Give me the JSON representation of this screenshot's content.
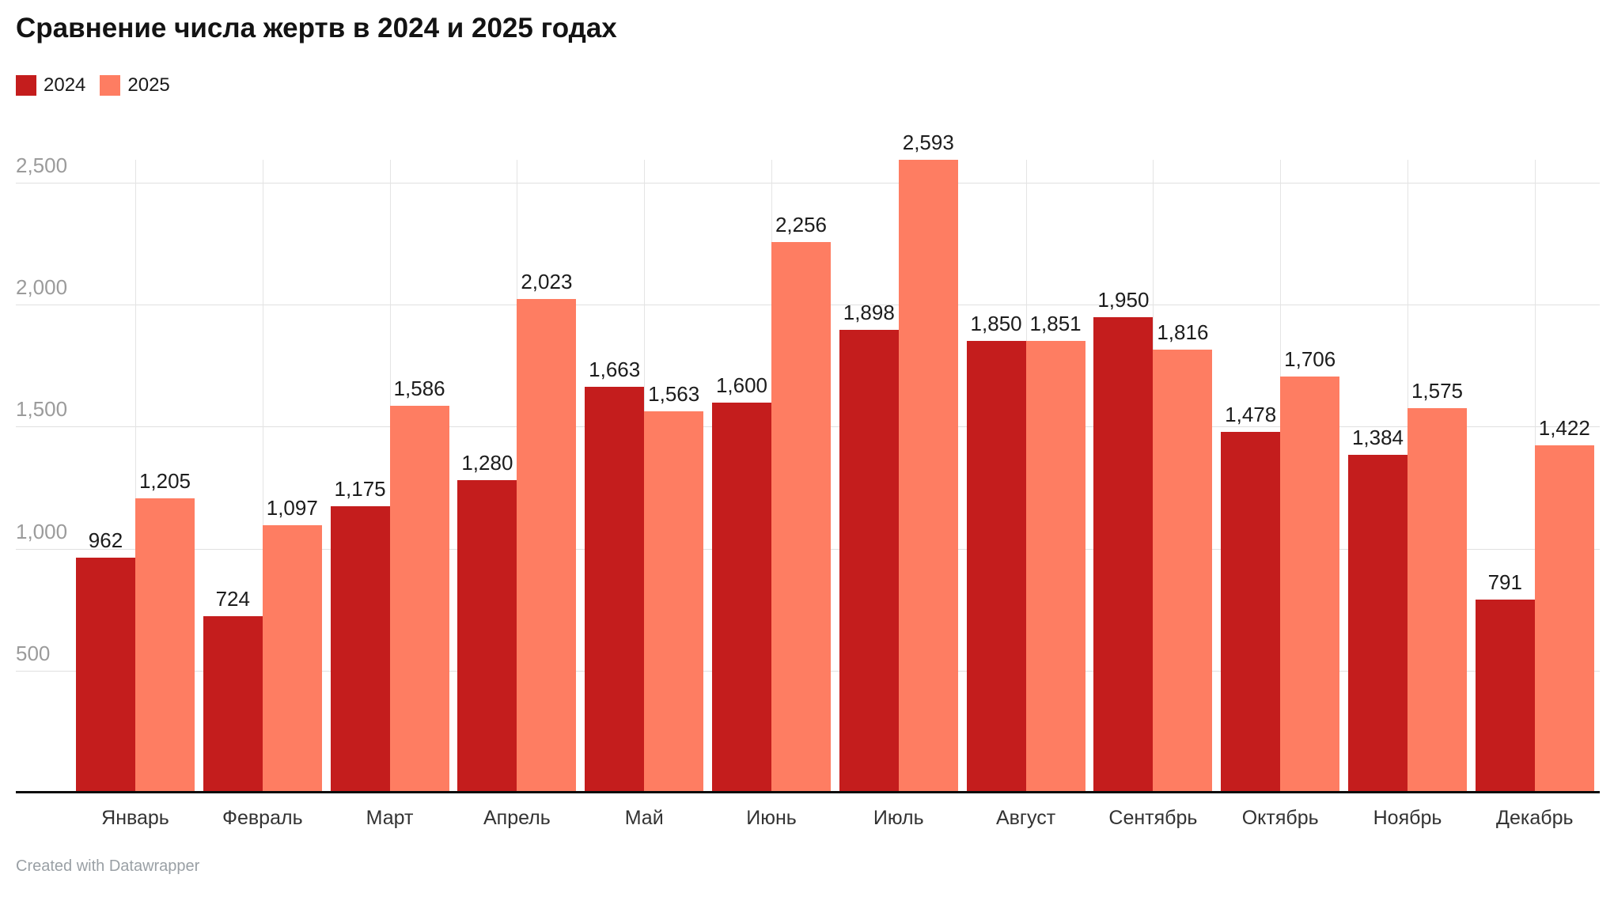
{
  "header": {
    "title": "Сравнение числа жертв в 2024 и 2025 годах"
  },
  "legend": {
    "items": [
      {
        "label": "2024",
        "color": "#c41d1d"
      },
      {
        "label": "2025",
        "color": "#fe7d62"
      }
    ]
  },
  "footer": {
    "credit": "Created with Datawrapper"
  },
  "chart_data": {
    "type": "bar",
    "title": "Сравнение числа жертв в 2024 и 2025 годах",
    "categories": [
      "Январь",
      "Февраль",
      "Март",
      "Апрель",
      "Май",
      "Июнь",
      "Июль",
      "Август",
      "Сентябрь",
      "Октябрь",
      "Ноябрь",
      "Декабрь"
    ],
    "series": [
      {
        "name": "2024",
        "color": "#c41d1d",
        "values": [
          962,
          724,
          1175,
          1280,
          1663,
          1600,
          1898,
          1850,
          1950,
          1478,
          1384,
          791
        ]
      },
      {
        "name": "2025",
        "color": "#fe7d62",
        "values": [
          1205,
          1097,
          1586,
          2023,
          1563,
          2256,
          2593,
          1851,
          1816,
          1706,
          1575,
          1422
        ]
      }
    ],
    "xlabel": "",
    "ylabel": "",
    "ylim": [
      0,
      2700
    ],
    "yticks": [
      500,
      1000,
      1500,
      2000,
      2500
    ],
    "ytick_labels": [
      "500",
      "1,000",
      "1,500",
      "2,000",
      "2,500"
    ],
    "grid": "horizontal gridlines + vertical gridline at each category center",
    "value_labels": true,
    "legend_position": "top-left",
    "background": "#ffffff",
    "gridline_color": "#e0e0e0",
    "tick_label_color": "#9b9b9b",
    "value_label_color": "#1c1c1c",
    "axis_line_color": "#0b0b0b"
  }
}
